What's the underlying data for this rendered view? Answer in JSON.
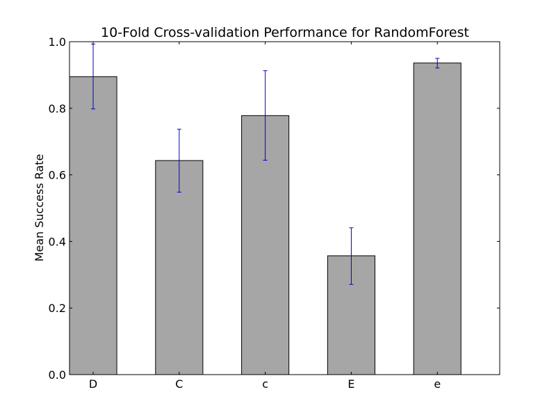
{
  "chart_data": {
    "type": "bar",
    "title": "10-Fold Cross-validation Performance for RandomForest",
    "xlabel": "",
    "ylabel": "Mean Success Rate",
    "categories": [
      "D",
      "C",
      "c",
      "E",
      "e"
    ],
    "values": [
      0.895,
      0.643,
      0.778,
      0.357,
      0.936
    ],
    "error_low": [
      0.798,
      0.548,
      0.644,
      0.271,
      0.921
    ],
    "error_high": [
      0.993,
      0.737,
      0.913,
      0.441,
      0.95
    ],
    "ylim": [
      0.0,
      1.0
    ],
    "yticks": [
      "0.0",
      "0.2",
      "0.4",
      "0.6",
      "0.8",
      "1.0"
    ],
    "grid": false,
    "bar_color": "#a6a6a6",
    "bar_edge_color": "#000000",
    "error_color": "#0000cc"
  }
}
